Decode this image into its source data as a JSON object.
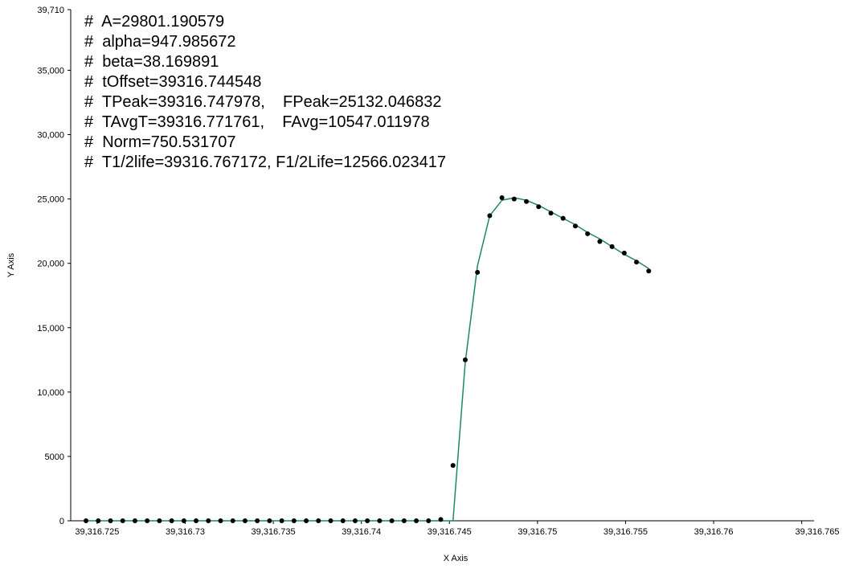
{
  "chart_data": {
    "type": "line",
    "x_label": "X Axis",
    "y_label": "Y Axis",
    "annotations": [
      "#  A=29801.190579",
      "#  alpha=947.985672",
      "#  beta=38.169891",
      "#  tOffset=39316.744548",
      "#  TPeak=39316.747978,    FPeak=25132.046832",
      "#  TAvgT=39316.771761,    FAvg=10547.011978",
      "#  Norm=750.531707",
      "#  T1/2life=39316.767172, F1/2Life=12566.023417"
    ],
    "x": [
      39316.72437,
      39316.725064,
      39316.725759,
      39316.726453,
      39316.727148,
      39316.727842,
      39316.728537,
      39316.729231,
      39316.729926,
      39316.73062,
      39316.731314,
      39316.732009,
      39316.732703,
      39316.733398,
      39316.734092,
      39316.734787,
      39316.735481,
      39316.736176,
      39316.73687,
      39316.737564,
      39316.738259,
      39316.738953,
      39316.739648,
      39316.740342,
      39316.741037,
      39316.741731,
      39316.742426,
      39316.74312,
      39316.743814,
      39316.744509,
      39316.745203,
      39316.745898,
      39316.746592,
      39316.747287,
      39316.747981,
      39316.748676,
      39316.74937,
      39316.750064,
      39316.750759,
      39316.751453,
      39316.752148,
      39316.752842,
      39316.753537,
      39316.754231,
      39316.754926,
      39316.75562,
      39316.756314
    ],
    "series": [
      {
        "style": "markers",
        "color": "#000000",
        "values": [
          0,
          0,
          0,
          0,
          0,
          0,
          0,
          0,
          0,
          0,
          0,
          0,
          0,
          0,
          0,
          0,
          0,
          0,
          0,
          0,
          0,
          0,
          0,
          0,
          0,
          0,
          0,
          0,
          0,
          100,
          4300,
          12500,
          19300,
          23700,
          25100,
          25000,
          24800,
          24400,
          23900,
          23500,
          22900,
          22300,
          21700,
          21300,
          20800,
          20100,
          19400
        ]
      },
      {
        "style": "line",
        "color": "#1a8a5c",
        "values": [
          0,
          0,
          0,
          0,
          0,
          0,
          0,
          0,
          0,
          0,
          0,
          0,
          0,
          0,
          0,
          0,
          0,
          0,
          0,
          0,
          0,
          0,
          0,
          0,
          0,
          0,
          0,
          0,
          0,
          0,
          0,
          12300,
          19800,
          23700,
          24900,
          25100,
          24900,
          24500,
          24000,
          23500,
          23000,
          22400,
          21900,
          21300,
          20700,
          20200,
          19600
        ]
      }
    ],
    "xlim": [
      39316.7235,
      39316.7657
    ],
    "xticks": [
      {
        "value": 39316.725,
        "label": "39,316.725"
      },
      {
        "value": 39316.73,
        "label": "39,316.73"
      },
      {
        "value": 39316.735,
        "label": "39,316.735"
      },
      {
        "value": 39316.74,
        "label": "39,316.74"
      },
      {
        "value": 39316.745,
        "label": "39,316.745"
      },
      {
        "value": 39316.75,
        "label": "39,316.75"
      },
      {
        "value": 39316.755,
        "label": "39,316.755"
      },
      {
        "value": 39316.76,
        "label": "39,316.76"
      },
      {
        "value": 39316.765,
        "label": "39,316.765"
      }
    ],
    "ylim": [
      0,
      39710
    ],
    "yticks": [
      0,
      5000,
      {
        "value": 10000,
        "label": "10,000"
      },
      {
        "value": 15000,
        "label": "15,000"
      },
      {
        "value": 20000,
        "label": "20,000"
      },
      {
        "value": 25000,
        "label": "25,000"
      },
      {
        "value": 30000,
        "label": "30,000"
      },
      {
        "value": 35000,
        "label": "35,000"
      },
      {
        "value": 39710,
        "label": "39,710"
      }
    ],
    "grid": false
  }
}
